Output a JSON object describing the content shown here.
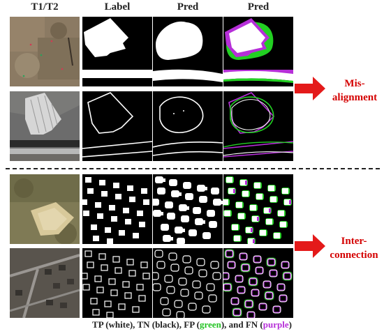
{
  "headers": [
    "T1/T2",
    "Label",
    "Pred",
    "Pred"
  ],
  "annotations": {
    "misalignment": [
      "Mis-",
      "alignment"
    ],
    "interconnection": [
      "Inter-",
      "connection"
    ]
  },
  "caption": {
    "p1": "TP (white), TN (black), FP (",
    "fp_word": "green",
    "p2": "), and FN (",
    "fn_word": "purple",
    "p3": ")"
  },
  "colors": {
    "arrow": "#e41a1a",
    "fp": "#22c322",
    "fn": "#b62fd8",
    "accent_text": "#d40000"
  }
}
